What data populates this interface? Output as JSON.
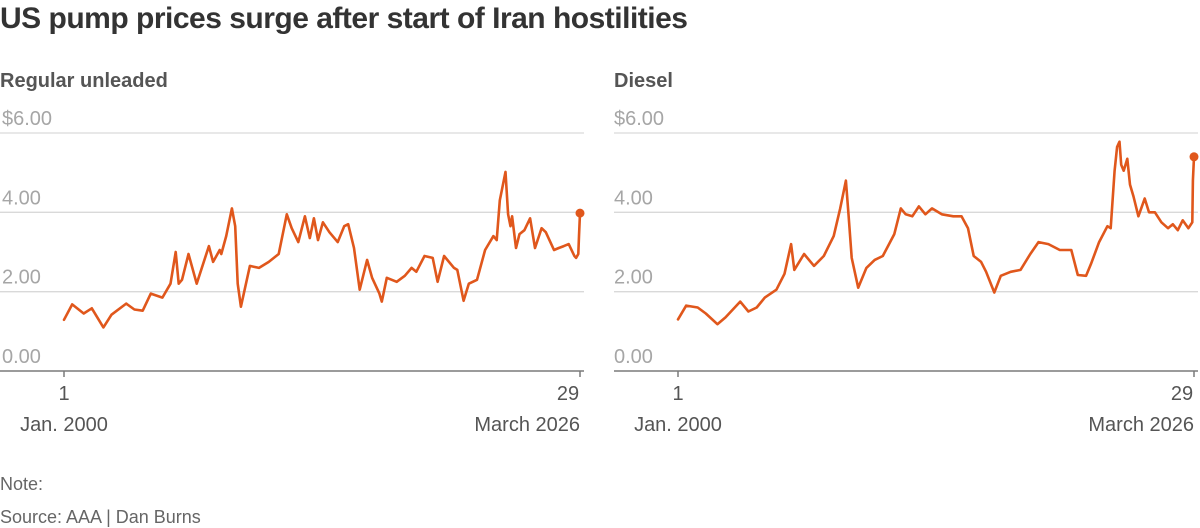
{
  "title": "US pump prices surge after start of Iran hostilities",
  "note": "Note:",
  "source": "Source: AAA | Dan Burns",
  "colors": {
    "line": "#e0571c",
    "grid": "#d9d9d9",
    "baseline": "#7a7a7a"
  },
  "chart_data": [
    {
      "type": "line",
      "title": "Regular unleaded",
      "ylim": [
        0,
        6
      ],
      "yticks": [
        {
          "value": 6,
          "label": "$6.00"
        },
        {
          "value": 4,
          "label": "4.00"
        },
        {
          "value": 2,
          "label": "2.00"
        },
        {
          "value": 0,
          "label": "0.00"
        }
      ],
      "xlim": [
        "2000-01-01",
        "2026-03-29"
      ],
      "xtick_labels": {
        "start_day": "1",
        "start_month": "Jan. 2000",
        "end_day": "29",
        "end_month": "March 2026"
      },
      "grid": true,
      "series": [
        {
          "x": [
            "2000-01-01",
            "2000-06-01",
            "2001-01-01",
            "2001-06-01",
            "2002-01-01",
            "2002-06-01",
            "2003-03-01",
            "2003-08-01",
            "2004-01-01",
            "2004-06-01",
            "2005-01-01",
            "2005-06-01",
            "2005-09-05",
            "2005-11-01",
            "2006-01-01",
            "2006-05-01",
            "2006-10-01",
            "2007-05-15",
            "2007-08-01",
            "2007-12-01",
            "2008-01-01",
            "2008-04-01",
            "2008-07-15",
            "2008-09-15",
            "2008-11-01",
            "2008-12-29",
            "2009-06-15",
            "2009-12-01",
            "2010-06-01",
            "2010-12-01",
            "2011-05-01",
            "2011-08-01",
            "2011-12-01",
            "2012-04-01",
            "2012-07-01",
            "2012-09-15",
            "2012-12-01",
            "2013-03-01",
            "2013-07-01",
            "2013-12-01",
            "2014-04-01",
            "2014-06-15",
            "2014-10-01",
            "2015-01-15",
            "2015-06-01",
            "2015-09-01",
            "2016-01-15",
            "2016-02-29",
            "2016-06-01",
            "2016-12-01",
            "2017-05-01",
            "2017-09-05",
            "2017-12-01",
            "2018-05-01",
            "2018-10-01",
            "2019-01-01",
            "2019-05-01",
            "2019-11-01",
            "2020-01-01",
            "2020-04-27",
            "2020-08-01",
            "2021-01-01",
            "2021-06-01",
            "2021-11-01",
            "2022-01-01",
            "2022-03-01",
            "2022-06-14",
            "2022-08-01",
            "2022-09-15",
            "2022-10-15",
            "2022-12-26",
            "2023-03-01",
            "2023-06-01",
            "2023-09-15",
            "2023-12-15",
            "2024-04-15",
            "2024-07-01",
            "2024-12-01",
            "2025-03-01",
            "2025-06-01",
            "2025-09-01",
            "2025-12-15",
            "2026-01-15",
            "2026-02-25",
            "2026-03-10",
            "2026-03-29"
          ],
          "y": [
            1.29,
            1.68,
            1.45,
            1.58,
            1.1,
            1.42,
            1.7,
            1.55,
            1.52,
            1.95,
            1.85,
            2.2,
            3.0,
            2.2,
            2.3,
            2.95,
            2.2,
            3.15,
            2.75,
            3.05,
            2.95,
            3.4,
            4.1,
            3.65,
            2.2,
            1.62,
            2.65,
            2.6,
            2.75,
            2.95,
            3.95,
            3.6,
            3.25,
            3.9,
            3.35,
            3.85,
            3.3,
            3.75,
            3.5,
            3.25,
            3.65,
            3.7,
            3.1,
            2.05,
            2.8,
            2.35,
            1.95,
            1.75,
            2.35,
            2.25,
            2.4,
            2.6,
            2.5,
            2.9,
            2.85,
            2.25,
            2.9,
            2.6,
            2.55,
            1.77,
            2.2,
            2.3,
            3.05,
            3.4,
            3.3,
            4.3,
            5.02,
            3.95,
            3.65,
            3.9,
            3.1,
            3.45,
            3.55,
            3.85,
            3.1,
            3.6,
            3.5,
            3.05,
            3.1,
            3.15,
            3.2,
            2.9,
            2.85,
            2.95,
            3.4,
            3.98
          ]
        }
      ]
    },
    {
      "type": "line",
      "title": "Diesel",
      "ylim": [
        0,
        6
      ],
      "yticks": [
        {
          "value": 6,
          "label": "$6.00"
        },
        {
          "value": 4,
          "label": "4.00"
        },
        {
          "value": 2,
          "label": "2.00"
        },
        {
          "value": 0,
          "label": "0.00"
        }
      ],
      "xlim": [
        "2000-01-01",
        "2026-03-29"
      ],
      "xtick_labels": {
        "start_day": "1",
        "start_month": "Jan. 2000",
        "end_day": "29",
        "end_month": "March 2026"
      },
      "grid": true,
      "series": [
        {
          "x": [
            "2000-01-01",
            "2000-06-01",
            "2001-01-01",
            "2001-06-01",
            "2002-01-01",
            "2002-06-01",
            "2003-03-01",
            "2003-08-01",
            "2004-01-01",
            "2004-06-01",
            "2005-01-01",
            "2005-06-01",
            "2005-10-01",
            "2005-12-01",
            "2006-06-01",
            "2006-12-01",
            "2007-06-01",
            "2007-12-01",
            "2008-04-01",
            "2008-07-15",
            "2008-09-01",
            "2008-11-01",
            "2009-03-01",
            "2009-08-01",
            "2010-01-01",
            "2010-06-01",
            "2011-01-01",
            "2011-05-01",
            "2011-08-01",
            "2011-12-01",
            "2012-04-01",
            "2012-08-01",
            "2012-12-01",
            "2013-06-01",
            "2014-01-01",
            "2014-06-01",
            "2014-10-01",
            "2015-01-15",
            "2015-06-01",
            "2015-09-01",
            "2016-02-01",
            "2016-06-01",
            "2016-12-01",
            "2017-06-01",
            "2017-12-01",
            "2018-05-01",
            "2018-11-01",
            "2019-06-01",
            "2020-01-01",
            "2020-05-01",
            "2020-10-01",
            "2021-01-01",
            "2021-06-01",
            "2021-11-01",
            "2022-01-01",
            "2022-03-15",
            "2022-05-01",
            "2022-06-15",
            "2022-07-15",
            "2022-09-01",
            "2022-11-07",
            "2022-12-26",
            "2023-03-01",
            "2023-06-01",
            "2023-09-25",
            "2023-12-15",
            "2024-04-01",
            "2024-08-01",
            "2024-12-01",
            "2025-03-01",
            "2025-06-01",
            "2025-09-01",
            "2025-12-15",
            "2026-02-25",
            "2026-03-08",
            "2026-03-29"
          ],
          "y": [
            1.3,
            1.65,
            1.6,
            1.45,
            1.18,
            1.35,
            1.75,
            1.5,
            1.6,
            1.85,
            2.05,
            2.45,
            3.2,
            2.55,
            2.95,
            2.65,
            2.9,
            3.4,
            4.1,
            4.8,
            3.95,
            2.85,
            2.1,
            2.6,
            2.8,
            2.9,
            3.45,
            4.1,
            3.95,
            3.9,
            4.15,
            3.95,
            4.1,
            3.95,
            3.9,
            3.9,
            3.6,
            2.9,
            2.75,
            2.5,
            1.98,
            2.4,
            2.5,
            2.55,
            2.95,
            3.25,
            3.2,
            3.05,
            3.05,
            2.42,
            2.4,
            2.7,
            3.25,
            3.65,
            3.6,
            5.05,
            5.65,
            5.78,
            5.2,
            5.05,
            5.35,
            4.7,
            4.4,
            3.9,
            4.35,
            4.0,
            4.0,
            3.75,
            3.6,
            3.7,
            3.55,
            3.8,
            3.6,
            3.75,
            4.8,
            5.4
          ]
        }
      ]
    }
  ]
}
